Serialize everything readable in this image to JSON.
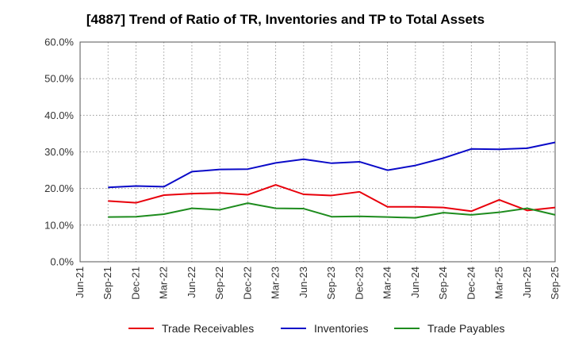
{
  "chart_data": {
    "type": "line",
    "title": "[4887]  Trend of Ratio of TR, Inventories and TP to Total Assets",
    "x": [
      "Jun-21",
      "Sep-21",
      "Dec-21",
      "Mar-22",
      "Jun-22",
      "Sep-22",
      "Dec-22",
      "Mar-23",
      "Jun-23",
      "Sep-23",
      "Dec-23",
      "Mar-24",
      "Jun-24",
      "Sep-24",
      "Dec-24",
      "Mar-25",
      "Jun-25",
      "Sep-25"
    ],
    "y_ticks": [
      "0.0%",
      "10.0%",
      "20.0%",
      "30.0%",
      "40.0%",
      "50.0%",
      "60.0%"
    ],
    "ylim": [
      0,
      60
    ],
    "grid": true,
    "legend_position": "bottom",
    "series": [
      {
        "name": "Trade Receivables",
        "color": "#e8000b",
        "values": [
          null,
          16.6,
          16.1,
          18.2,
          18.6,
          18.8,
          18.3,
          21.0,
          18.4,
          18.1,
          19.1,
          15.0,
          15.0,
          14.8,
          13.8,
          16.9,
          14.0,
          14.8
        ]
      },
      {
        "name": "Inventories",
        "color": "#0a0ac8",
        "values": [
          null,
          20.3,
          20.7,
          20.5,
          24.6,
          25.2,
          25.3,
          27.0,
          28.0,
          26.9,
          27.3,
          25.0,
          26.3,
          28.3,
          30.8,
          30.7,
          31.0,
          32.6
        ]
      },
      {
        "name": "Trade Payables",
        "color": "#1e8c1e",
        "values": [
          null,
          12.2,
          12.3,
          13.0,
          14.6,
          14.2,
          16.0,
          14.6,
          14.5,
          12.3,
          12.4,
          12.2,
          12.0,
          13.4,
          12.8,
          13.5,
          14.6,
          12.8
        ]
      }
    ]
  }
}
